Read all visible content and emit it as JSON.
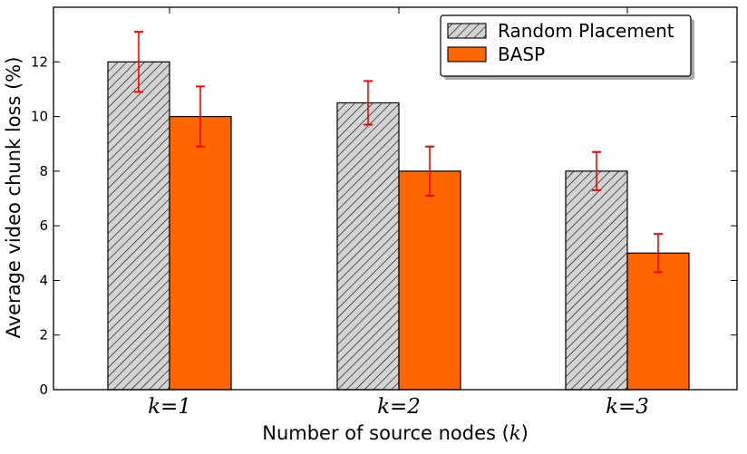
{
  "chart_data": {
    "type": "bar",
    "title": "",
    "xlabel": "Number of source nodes (k)",
    "ylabel": "Average video chunk loss  (%)",
    "categories": [
      "k=1",
      "k=2",
      "k=3"
    ],
    "ylim": [
      0,
      14
    ],
    "yticks": [
      0,
      2,
      4,
      6,
      8,
      10,
      12
    ],
    "grid": false,
    "legend_position": "top-right",
    "series": [
      {
        "name": "Random Placement",
        "values": [
          12.0,
          10.5,
          8.0
        ],
        "error_low": [
          10.9,
          9.7,
          7.3
        ],
        "error_high": [
          13.1,
          11.3,
          8.7
        ],
        "fill": "#d3d3d3",
        "pattern": "hatch"
      },
      {
        "name": "BASP",
        "values": [
          10.0,
          8.0,
          5.0
        ],
        "error_low": [
          8.9,
          7.1,
          4.3
        ],
        "error_high": [
          11.1,
          8.9,
          5.7
        ],
        "fill": "#ff6600",
        "pattern": "solid"
      }
    ],
    "error_bar_color": "#ff0000"
  }
}
